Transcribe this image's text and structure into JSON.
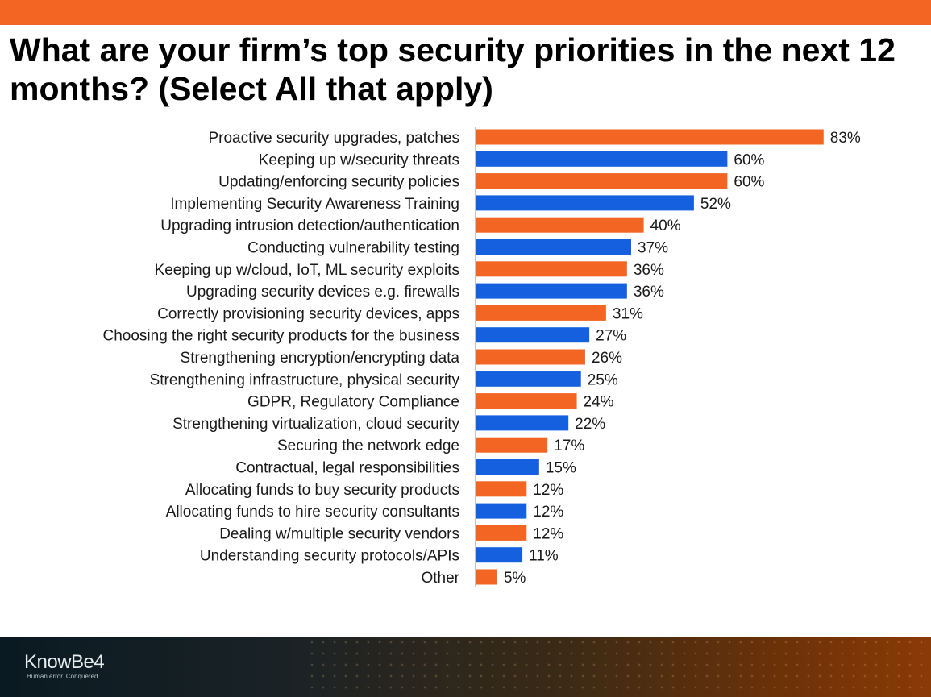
{
  "header": {
    "title": "What are your firm’s top security priorities in the next 12 months? (Select All that apply)"
  },
  "colors": {
    "accent_orange": "#f26522",
    "accent_blue": "#1460df"
  },
  "chart_data": {
    "type": "bar",
    "orientation": "horizontal",
    "title": "What are your firm’s top security priorities in the next 12 months? (Select All that apply)",
    "categories": [
      "Proactive security upgrades, patches",
      "Keeping up w/security threats",
      "Updating/enforcing security policies",
      "Implementing Security Awareness Training",
      "Upgrading intrusion detection/authentication",
      "Conducting vulnerability testing",
      "Keeping up w/cloud, IoT, ML security exploits",
      "Upgrading security devices e.g. firewalls",
      "Correctly provisioning security devices, apps",
      "Choosing the right security products for the business",
      "Strengthening encryption/encrypting data",
      "Strengthening infrastructure, physical security",
      "GDPR, Regulatory Compliance",
      "Strengthening virtualization, cloud security",
      "Securing the network edge",
      "Contractual, legal responsibilities",
      "Allocating funds to buy security products",
      "Allocating funds to hire security consultants",
      "Dealing w/multiple security vendors",
      "Understanding security protocols/APIs",
      "Other"
    ],
    "values": [
      83,
      60,
      60,
      52,
      40,
      37,
      36,
      36,
      31,
      27,
      26,
      25,
      24,
      22,
      17,
      15,
      12,
      12,
      12,
      11,
      5
    ],
    "value_labels": [
      "83%",
      "60%",
      "60%",
      "52%",
      "40%",
      "37%",
      "36%",
      "36%",
      "31%",
      "27%",
      "26%",
      "25%",
      "24%",
      "22%",
      "17%",
      "15%",
      "12%",
      "12%",
      "12%",
      "11%",
      "5%"
    ],
    "bar_colors": [
      "#f26522",
      "#1460df"
    ],
    "xlim": [
      0,
      100
    ],
    "grid": false,
    "legend": "none"
  },
  "footer": {
    "logo_text": "KnowBe4",
    "logo_tagline": "Human error. Conquered."
  }
}
